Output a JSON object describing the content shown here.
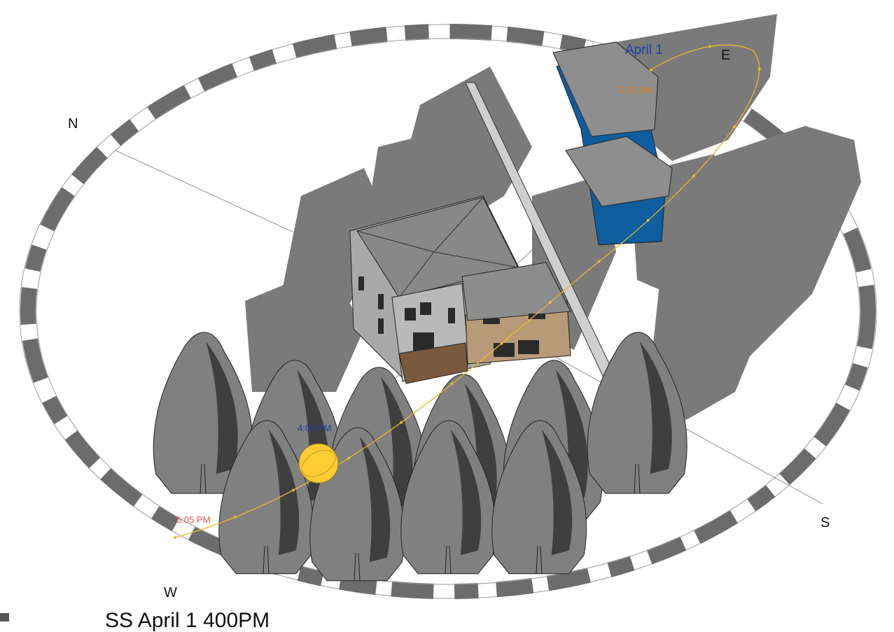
{
  "view": {
    "title": "SS April 1 400PM",
    "tool": "sun-path"
  },
  "compass": {
    "north": "N",
    "east": "E",
    "south": "S",
    "west": "W"
  },
  "sun_path": {
    "date_label": "April 1",
    "sunrise_label": "5:32 AM",
    "current_time_label": "4:00 PM",
    "sunset_label": "6:05 PM"
  },
  "colors": {
    "path": "#e8b62a",
    "sun": "#ffcc33",
    "date": "#1f3ea8",
    "sunrise": "#e07b1a",
    "current": "#1f3ea8",
    "sunset": "#e0564a",
    "shadow": "#7a7a7a",
    "dark_shadow": "#3f3f3f",
    "building_blue": "#0e5d9e",
    "tree": "#808080"
  }
}
